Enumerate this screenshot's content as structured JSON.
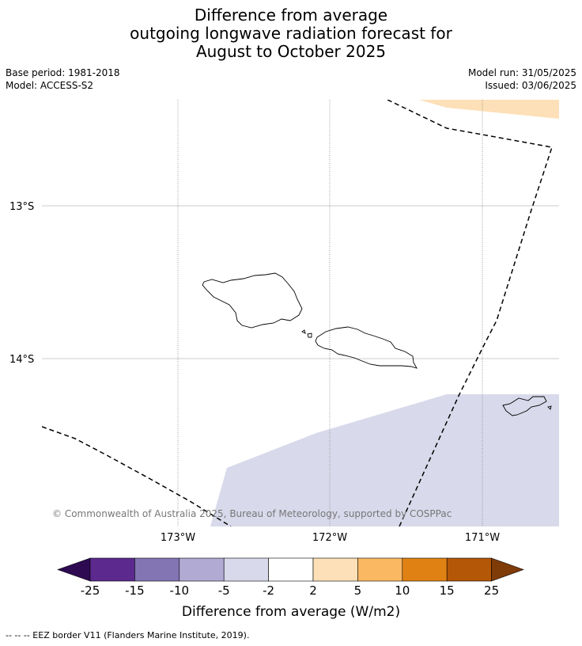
{
  "title": {
    "line1": "Difference from average",
    "line2": "outgoing longwave radiation forecast for",
    "line3": "August to October 2025"
  },
  "meta": {
    "base_period": "Base period: 1981-2018",
    "model": "Model: ACCESS-S2",
    "model_run": "Model run: 31/05/2025",
    "issued": "Issued: 03/06/2025"
  },
  "map": {
    "lat_labels": [
      "13°S",
      "14°S"
    ],
    "lon_labels": [
      "173°W",
      "172°W",
      "171°W"
    ],
    "copyright": "© Commonwealth of Australia 2025, Bureau of Meteorology, supported by COSPPac",
    "anomaly_colors": {
      "positive_north": "#fde0b7",
      "negative_south": "#d8d9ea"
    }
  },
  "colorbar": {
    "label": "Difference from average (W/m2)",
    "ticks": [
      "-25",
      "-15",
      "-10",
      "-5",
      "-2",
      "2",
      "5",
      "10",
      "15",
      "25"
    ],
    "colors": [
      "#2d0a52",
      "#5c2a8e",
      "#8374b4",
      "#b1aad3",
      "#d8d9ea",
      "#ffffff",
      "#fde0b7",
      "#fbb863",
      "#e08213",
      "#b45706",
      "#7f3b08"
    ]
  },
  "footer": {
    "legend": "--  --  -- EEZ border V11 (Flanders Marine Institute, 2019)."
  }
}
